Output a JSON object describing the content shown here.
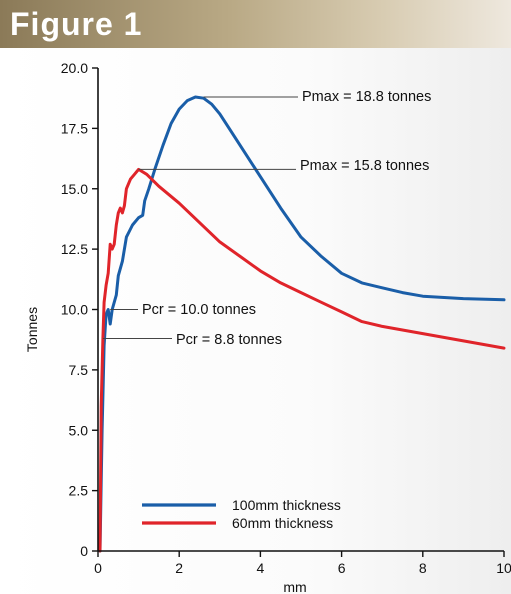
{
  "figure": {
    "title": "Figure 1"
  },
  "colors": {
    "series_100mm": "#1a5ea8",
    "series_60mm": "#e0242a",
    "axis": "#111111",
    "leader": "#444444"
  },
  "chart_data": {
    "type": "line",
    "title": "",
    "xlabel": "mm",
    "ylabel": "Tonnes",
    "xlim": [
      0,
      10
    ],
    "ylim": [
      0,
      20
    ],
    "x_ticks": [
      0,
      2,
      4,
      6,
      8,
      10
    ],
    "x_tick_labels": [
      "0",
      "2",
      "4",
      "6",
      "8",
      "10"
    ],
    "y_ticks": [
      0,
      2.5,
      5,
      7.5,
      10,
      12.5,
      15,
      17.5,
      20
    ],
    "y_tick_labels": [
      "0",
      "2.5",
      "5.0",
      "7.5",
      "10.0",
      "12.5",
      "15.0",
      "17.5",
      "20.0"
    ],
    "grid": false,
    "legend_position": "bottom-center",
    "series": [
      {
        "name": "100mm thickness",
        "color": "#1a5ea8",
        "points": [
          [
            0.05,
            0
          ],
          [
            0.1,
            5
          ],
          [
            0.15,
            8.5
          ],
          [
            0.2,
            9.8
          ],
          [
            0.25,
            10.0
          ],
          [
            0.3,
            9.4
          ],
          [
            0.35,
            10.0
          ],
          [
            0.45,
            10.6
          ],
          [
            0.5,
            11.4
          ],
          [
            0.6,
            12.0
          ],
          [
            0.7,
            13.0
          ],
          [
            0.85,
            13.5
          ],
          [
            1.0,
            13.8
          ],
          [
            1.1,
            13.9
          ],
          [
            1.15,
            14.5
          ],
          [
            1.25,
            15.0
          ],
          [
            1.4,
            15.8
          ],
          [
            1.6,
            16.8
          ],
          [
            1.8,
            17.7
          ],
          [
            2.0,
            18.3
          ],
          [
            2.2,
            18.65
          ],
          [
            2.4,
            18.8
          ],
          [
            2.6,
            18.75
          ],
          [
            2.8,
            18.5
          ],
          [
            3.0,
            18.1
          ],
          [
            3.5,
            16.8
          ],
          [
            4.0,
            15.5
          ],
          [
            4.5,
            14.2
          ],
          [
            5.0,
            13.0
          ],
          [
            5.5,
            12.2
          ],
          [
            6.0,
            11.5
          ],
          [
            6.5,
            11.1
          ],
          [
            7.0,
            10.9
          ],
          [
            7.5,
            10.7
          ],
          [
            8.0,
            10.55
          ],
          [
            9.0,
            10.45
          ],
          [
            10.0,
            10.4
          ]
        ]
      },
      {
        "name": "60mm thickness",
        "color": "#e0242a",
        "points": [
          [
            0.05,
            0
          ],
          [
            0.08,
            6
          ],
          [
            0.12,
            8.8
          ],
          [
            0.15,
            10.3
          ],
          [
            0.2,
            11.0
          ],
          [
            0.25,
            11.5
          ],
          [
            0.3,
            12.7
          ],
          [
            0.35,
            12.5
          ],
          [
            0.4,
            12.7
          ],
          [
            0.45,
            13.5
          ],
          [
            0.5,
            14.0
          ],
          [
            0.55,
            14.2
          ],
          [
            0.6,
            14.0
          ],
          [
            0.65,
            14.3
          ],
          [
            0.7,
            15.0
          ],
          [
            0.8,
            15.4
          ],
          [
            0.9,
            15.6
          ],
          [
            1.0,
            15.8
          ],
          [
            1.2,
            15.6
          ],
          [
            1.5,
            15.1
          ],
          [
            2.0,
            14.4
          ],
          [
            2.5,
            13.6
          ],
          [
            3.0,
            12.8
          ],
          [
            3.5,
            12.2
          ],
          [
            4.0,
            11.6
          ],
          [
            4.5,
            11.1
          ],
          [
            5.0,
            10.7
          ],
          [
            5.5,
            10.3
          ],
          [
            6.0,
            9.9
          ],
          [
            6.5,
            9.5
          ],
          [
            7.0,
            9.3
          ],
          [
            8.0,
            9.0
          ],
          [
            9.0,
            8.7
          ],
          [
            10.0,
            8.4
          ]
        ]
      }
    ],
    "annotations": [
      {
        "text": "Pmax = 18.8 tonnes",
        "x": 2.6,
        "y": 18.8
      },
      {
        "text": "Pmax = 15.8 tonnes",
        "x": 1.0,
        "y": 15.8
      },
      {
        "text": "Pcr = 10.0 tonnes",
        "x": 0.3,
        "y": 10.0
      },
      {
        "text": "Pcr = 8.8 tonnes",
        "x": 0.12,
        "y": 8.8
      }
    ]
  }
}
